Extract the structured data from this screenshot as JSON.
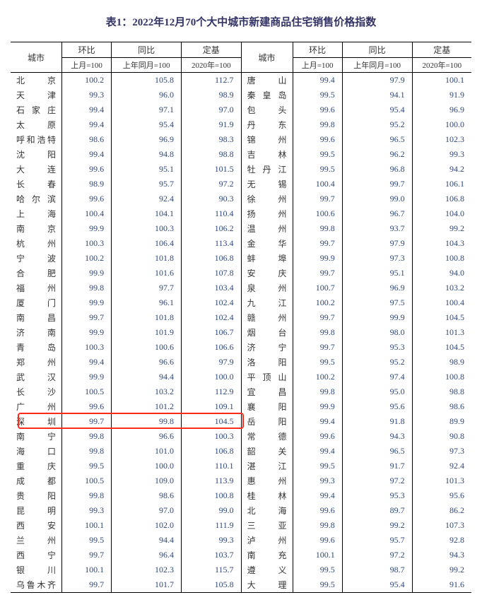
{
  "title": "表1：2022年12月70个大中城市新建商品住宅销售价格指数",
  "headers": {
    "city": "城市",
    "mom": "环比",
    "yoy": "同比",
    "base": "定基",
    "mom_sub": "上月=100",
    "yoy_sub": "上年同月=100",
    "base_sub": "2020年=100"
  },
  "highlight_index": 21,
  "rows": [
    {
      "c1": "北　　京",
      "m1": "100.2",
      "y1": "105.8",
      "b1": "112.7",
      "c2": "唐　　山",
      "m2": "99.4",
      "y2": "97.9",
      "b2": "100.1"
    },
    {
      "c1": "天　　津",
      "m1": "99.3",
      "y1": "96.0",
      "b1": "98.9",
      "c2": "秦 皇 岛",
      "m2": "99.5",
      "y2": "94.1",
      "b2": "91.9"
    },
    {
      "c1": "石 家 庄",
      "m1": "99.4",
      "y1": "97.1",
      "b1": "97.0",
      "c2": "包　　头",
      "m2": "99.6",
      "y2": "95.4",
      "b2": "96.9"
    },
    {
      "c1": "太　　原",
      "m1": "99.4",
      "y1": "95.4",
      "b1": "91.9",
      "c2": "丹　　东",
      "m2": "99.8",
      "y2": "95.2",
      "b2": "100.0"
    },
    {
      "c1": "呼和浩特",
      "m1": "98.6",
      "y1": "96.9",
      "b1": "98.3",
      "c2": "锦　　州",
      "m2": "99.6",
      "y2": "96.5",
      "b2": "102.3"
    },
    {
      "c1": "沈　　阳",
      "m1": "99.4",
      "y1": "94.8",
      "b1": "98.8",
      "c2": "吉　　林",
      "m2": "99.5",
      "y2": "96.2",
      "b2": "99.3"
    },
    {
      "c1": "大　　连",
      "m1": "99.6",
      "y1": "95.1",
      "b1": "101.5",
      "c2": "牡 丹 江",
      "m2": "99.5",
      "y2": "96.8",
      "b2": "94.2"
    },
    {
      "c1": "长　　春",
      "m1": "98.9",
      "y1": "95.7",
      "b1": "97.2",
      "c2": "无　　锡",
      "m2": "100.4",
      "y2": "99.7",
      "b2": "106.1"
    },
    {
      "c1": "哈 尔 滨",
      "m1": "99.6",
      "y1": "92.4",
      "b1": "90.3",
      "c2": "徐　　州",
      "m2": "99.7",
      "y2": "99.0",
      "b2": "106.8"
    },
    {
      "c1": "上　　海",
      "m1": "100.4",
      "y1": "104.1",
      "b1": "110.4",
      "c2": "扬　　州",
      "m2": "100.6",
      "y2": "96.7",
      "b2": "104.0"
    },
    {
      "c1": "南　　京",
      "m1": "99.9",
      "y1": "100.3",
      "b1": "106.2",
      "c2": "温　　州",
      "m2": "99.8",
      "y2": "93.7",
      "b2": "99.2"
    },
    {
      "c1": "杭　　州",
      "m1": "100.3",
      "y1": "106.4",
      "b1": "113.4",
      "c2": "金　　华",
      "m2": "99.7",
      "y2": "97.9",
      "b2": "104.3"
    },
    {
      "c1": "宁　　波",
      "m1": "100.2",
      "y1": "101.8",
      "b1": "106.8",
      "c2": "蚌　　埠",
      "m2": "99.9",
      "y2": "97.3",
      "b2": "100.8"
    },
    {
      "c1": "合　　肥",
      "m1": "99.9",
      "y1": "101.6",
      "b1": "107.8",
      "c2": "安　　庆",
      "m2": "99.7",
      "y2": "95.1",
      "b2": "94.0"
    },
    {
      "c1": "福　　州",
      "m1": "99.8",
      "y1": "97.7",
      "b1": "103.4",
      "c2": "泉　　州",
      "m2": "100.7",
      "y2": "96.9",
      "b2": "103.2"
    },
    {
      "c1": "厦　　门",
      "m1": "99.9",
      "y1": "96.1",
      "b1": "102.4",
      "c2": "九　　江",
      "m2": "100.2",
      "y2": "97.5",
      "b2": "100.4"
    },
    {
      "c1": "南　　昌",
      "m1": "99.7",
      "y1": "101.8",
      "b1": "102.4",
      "c2": "赣　　州",
      "m2": "99.7",
      "y2": "99.9",
      "b2": "104.5"
    },
    {
      "c1": "济　　南",
      "m1": "99.9",
      "y1": "101.9",
      "b1": "106.7",
      "c2": "烟　　台",
      "m2": "99.8",
      "y2": "98.0",
      "b2": "101.3"
    },
    {
      "c1": "青　　岛",
      "m1": "100.3",
      "y1": "100.6",
      "b1": "106.6",
      "c2": "济　　宁",
      "m2": "99.7",
      "y2": "95.3",
      "b2": "104.5"
    },
    {
      "c1": "郑　　州",
      "m1": "99.4",
      "y1": "96.6",
      "b1": "97.9",
      "c2": "洛　　阳",
      "m2": "99.5",
      "y2": "95.2",
      "b2": "98.9"
    },
    {
      "c1": "武　　汉",
      "m1": "99.9",
      "y1": "94.4",
      "b1": "100.0",
      "c2": "平 顶 山",
      "m2": "100.2",
      "y2": "97.4",
      "b2": "100.8"
    },
    {
      "c1": "长　　沙",
      "m1": "100.5",
      "y1": "103.2",
      "b1": "112.9",
      "c2": "宜　　昌",
      "m2": "99.8",
      "y2": "95.0",
      "b2": "98.8"
    },
    {
      "c1": "广　　州",
      "m1": "99.6",
      "y1": "101.2",
      "b1": "109.1",
      "c2": "襄　　阳",
      "m2": "99.9",
      "y2": "95.6",
      "b2": "98.6"
    },
    {
      "c1": "深　　圳",
      "m1": "99.7",
      "y1": "99.8",
      "b1": "104.5",
      "c2": "岳　　阳",
      "m2": "99.4",
      "y2": "91.8",
      "b2": "89.9"
    },
    {
      "c1": "南　　宁",
      "m1": "99.8",
      "y1": "96.6",
      "b1": "100.3",
      "c2": "常　　德",
      "m2": "99.6",
      "y2": "94.3",
      "b2": "90.8"
    },
    {
      "c1": "海　　口",
      "m1": "99.8",
      "y1": "101.0",
      "b1": "106.8",
      "c2": "韶　　关",
      "m2": "99.4",
      "y2": "96.5",
      "b2": "97.3"
    },
    {
      "c1": "重　　庆",
      "m1": "99.5",
      "y1": "100.0",
      "b1": "110.1",
      "c2": "湛　　江",
      "m2": "99.5",
      "y2": "91.7",
      "b2": "92.4"
    },
    {
      "c1": "成　　都",
      "m1": "100.5",
      "y1": "109.0",
      "b1": "113.9",
      "c2": "惠　　州",
      "m2": "99.3",
      "y2": "97.2",
      "b2": "101.3"
    },
    {
      "c1": "贵　　阳",
      "m1": "99.8",
      "y1": "98.6",
      "b1": "100.8",
      "c2": "桂　　林",
      "m2": "99.4",
      "y2": "95.3",
      "b2": "95.6"
    },
    {
      "c1": "昆　　明",
      "m1": "99.3",
      "y1": "97.0",
      "b1": "99.0",
      "c2": "北　　海",
      "m2": "99.6",
      "y2": "89.7",
      "b2": "86.2"
    },
    {
      "c1": "西　　安",
      "m1": "100.1",
      "y1": "102.0",
      "b1": "111.9",
      "c2": "三　　亚",
      "m2": "99.8",
      "y2": "99.2",
      "b2": "107.3"
    },
    {
      "c1": "兰　　州",
      "m1": "99.5",
      "y1": "94.4",
      "b1": "99.3",
      "c2": "泸　　州",
      "m2": "99.6",
      "y2": "95.7",
      "b2": "92.8"
    },
    {
      "c1": "西　　宁",
      "m1": "99.7",
      "y1": "96.4",
      "b1": "103.7",
      "c2": "南　　充",
      "m2": "100.1",
      "y2": "97.2",
      "b2": "94.3"
    },
    {
      "c1": "银　　川",
      "m1": "100.1",
      "y1": "102.3",
      "b1": "115.7",
      "c2": "遵　　义",
      "m2": "99.5",
      "y2": "98.7",
      "b2": "99.2"
    },
    {
      "c1": "乌鲁木齐",
      "m1": "99.7",
      "y1": "101.7",
      "b1": "105.8",
      "c2": "大　　理",
      "m2": "99.5",
      "y2": "95.4",
      "b2": "91.6"
    }
  ]
}
